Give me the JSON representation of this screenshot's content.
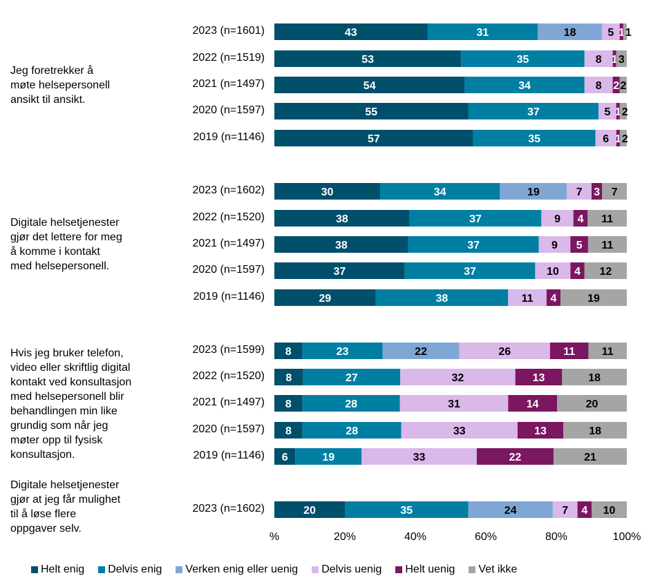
{
  "chart_data": {
    "type": "bar",
    "orientation": "horizontal",
    "stacked": "percent",
    "xlim": [
      0,
      100
    ],
    "x_ticks": [
      "%",
      "20%",
      "40%",
      "60%",
      "80%",
      "100%"
    ],
    "legend_position": "bottom",
    "series": [
      {
        "name": "Helt enig",
        "color": "#004f6b",
        "label_color": "#ffffff"
      },
      {
        "name": "Delvis enig",
        "color": "#007fa3",
        "label_color": "#ffffff"
      },
      {
        "name": "Verken enig eller uenig",
        "color": "#7fa7d6",
        "label_color": "#000000"
      },
      {
        "name": "Delvis uenig",
        "color": "#dab8ea",
        "label_color": "#000000"
      },
      {
        "name": "Helt uenig",
        "color": "#7b1660",
        "label_color": "#ffffff"
      },
      {
        "name": "Vet ikke",
        "color": "#a5a5a5",
        "label_color": "#000000"
      }
    ],
    "groups": [
      {
        "label": "Jeg foretrekker å\nmøte helsepersonell\nansikt til ansikt.",
        "rows": [
          {
            "label": "2023 (n=1601)",
            "values": [
              43,
              31,
              18,
              5,
              1,
              1
            ]
          },
          {
            "label": "2022 (n=1519)",
            "values": [
              53,
              35,
              null,
              8,
              1,
              3
            ]
          },
          {
            "label": "2021 (n=1497)",
            "values": [
              54,
              34,
              null,
              8,
              2,
              2
            ]
          },
          {
            "label": "2020 (n=1597)",
            "values": [
              55,
              37,
              null,
              5,
              1,
              2
            ]
          },
          {
            "label": "2019 (n=1146)",
            "values": [
              57,
              35,
              null,
              6,
              1,
              2
            ]
          }
        ]
      },
      {
        "label": "Digitale helsetjenester\ngjør det lettere for meg\nå komme i kontakt\nmed helsepersonell.",
        "rows": [
          {
            "label": "2023 (n=1602)",
            "values": [
              30,
              34,
              19,
              7,
              3,
              7
            ]
          },
          {
            "label": "2022 (n=1520)",
            "values": [
              38,
              37,
              null,
              9,
              4,
              11
            ]
          },
          {
            "label": "2021 (n=1497)",
            "values": [
              38,
              37,
              null,
              9,
              5,
              11
            ]
          },
          {
            "label": "2020 (n=1597)",
            "values": [
              37,
              37,
              null,
              10,
              4,
              12
            ]
          },
          {
            "label": "2019 (n=1146)",
            "values": [
              29,
              38,
              null,
              11,
              4,
              19
            ]
          }
        ]
      },
      {
        "label": "Hvis jeg bruker telefon,\nvideo eller skriftlig digital\nkontakt ved konsultasjon\nmed helsepersonell blir\nbehandlingen min like\ngrundig som når jeg\nmøter opp til fysisk\nkonsultasjon.",
        "rows": [
          {
            "label": "2023 (n=1599)",
            "values": [
              8,
              23,
              22,
              26,
              11,
              11
            ]
          },
          {
            "label": "2022 (n=1520)",
            "values": [
              8,
              27,
              null,
              32,
              13,
              18
            ]
          },
          {
            "label": "2021 (n=1497)",
            "values": [
              8,
              28,
              null,
              31,
              14,
              20
            ]
          },
          {
            "label": "2020 (n=1597)",
            "values": [
              8,
              28,
              null,
              33,
              13,
              18
            ]
          },
          {
            "label": "2019 (n=1146)",
            "values": [
              6,
              19,
              null,
              33,
              22,
              21
            ]
          }
        ]
      },
      {
        "label": "Digitale helsetjenester\ngjør at jeg får mulighet\ntil å løse flere\noppgaver selv.",
        "rows": [
          {
            "label": "2023 (n=1602)",
            "values": [
              20,
              35,
              24,
              7,
              4,
              10
            ]
          }
        ]
      }
    ]
  }
}
